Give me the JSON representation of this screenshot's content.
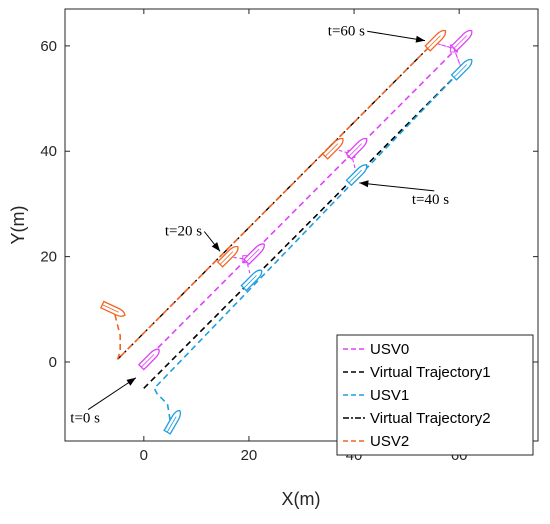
{
  "chart_data": {
    "type": "line",
    "title": "",
    "xlabel": "X(m)",
    "ylabel": "Y(m)",
    "xlim": [
      -15,
      75
    ],
    "ylim": [
      -15,
      67
    ],
    "xticks": [
      0,
      20,
      40,
      60
    ],
    "yticks": [
      0,
      20,
      40,
      60
    ],
    "legend_position": "bottom-right",
    "grid": false,
    "series": [
      {
        "name": "USV0",
        "color": "#e040fb",
        "style": "dashed",
        "x": [
          0,
          0.5,
          60
        ],
        "y": [
          0,
          0.5,
          60
        ]
      },
      {
        "name": "Virtual Trajectory1",
        "color": "#000000",
        "style": "dashed",
        "x": [
          0,
          60
        ],
        "y": [
          -5,
          55
        ]
      },
      {
        "name": "USV1",
        "color": "#1f9fe0",
        "style": "dashed",
        "x": [
          5,
          4.5,
          2.5,
          2,
          60
        ],
        "y": [
          -11,
          -8,
          -6,
          -5,
          55
        ]
      },
      {
        "name": "Virtual Trajectory2",
        "color": "#000000",
        "style": "dashdot",
        "x": [
          -5,
          55
        ],
        "y": [
          0.5,
          60.5
        ]
      },
      {
        "name": "USV2",
        "color": "#f26522",
        "style": "dashed",
        "x": [
          -5.5,
          -4.5,
          -4.5,
          -5,
          55
        ],
        "y": [
          9,
          5,
          2,
          0.5,
          60.5
        ]
      }
    ],
    "annotations": [
      {
        "text": "t=0 s",
        "tx": -14,
        "ty": -11.5,
        "ax": -1.5,
        "ay": -3
      },
      {
        "text": "t=20 s",
        "tx": 4,
        "ty": 24,
        "ax": 14.5,
        "ay": 21
      },
      {
        "text": "t=40 s",
        "tx": 51,
        "ty": 30,
        "ax": 41,
        "ay": 34
      },
      {
        "text": "t=60 s",
        "tx": 35,
        "ty": 62,
        "ax": 53.5,
        "ay": 61
      }
    ],
    "vessels": [
      {
        "series": "USV2",
        "x": -6,
        "y": 10,
        "heading": -25
      },
      {
        "series": "USV1",
        "x": 5.5,
        "y": -11.5,
        "heading": 60
      },
      {
        "series": "USV0",
        "x": 1,
        "y": 0.5,
        "heading": 45
      },
      {
        "series": "USV2",
        "x": 16,
        "y": 20,
        "heading": 45
      },
      {
        "series": "USV0",
        "x": 21,
        "y": 20.5,
        "heading": 45
      },
      {
        "series": "USV1",
        "x": 20.5,
        "y": 15.5,
        "heading": 45
      },
      {
        "series": "USV2",
        "x": 36,
        "y": 40.5,
        "heading": 45
      },
      {
        "series": "USV0",
        "x": 40.5,
        "y": 40.5,
        "heading": 45
      },
      {
        "series": "USV1",
        "x": 40.5,
        "y": 35.5,
        "heading": 45
      },
      {
        "series": "USV2",
        "x": 55.5,
        "y": 61,
        "heading": 45
      },
      {
        "series": "USV0",
        "x": 60.5,
        "y": 61,
        "heading": 45
      },
      {
        "series": "USV1",
        "x": 60.5,
        "y": 55.5,
        "heading": 45
      }
    ],
    "formations": [
      {
        "series": "USV0",
        "points": [
          [
            16,
            20
          ],
          [
            19.5,
            19.5
          ],
          [
            20.5,
            15.5
          ],
          [
            19.5,
            19.5
          ],
          [
            16,
            20
          ]
        ]
      },
      {
        "series": "USV0",
        "points": [
          [
            36,
            40.5
          ],
          [
            39.5,
            39.5
          ],
          [
            40.5,
            35.5
          ],
          [
            39.5,
            39.5
          ],
          [
            36,
            40.5
          ]
        ]
      },
      {
        "series": "USV0",
        "points": [
          [
            55.5,
            60.5
          ],
          [
            59,
            59.5
          ],
          [
            60.5,
            55.5
          ],
          [
            59,
            59.5
          ],
          [
            55.5,
            60.5
          ]
        ]
      }
    ],
    "formation_markers": [
      {
        "series": "USV0",
        "x": 19.5,
        "y": 19.5
      },
      {
        "series": "USV0",
        "x": 39.5,
        "y": 39.5
      },
      {
        "series": "USV0",
        "x": 59,
        "y": 59.5
      }
    ]
  }
}
